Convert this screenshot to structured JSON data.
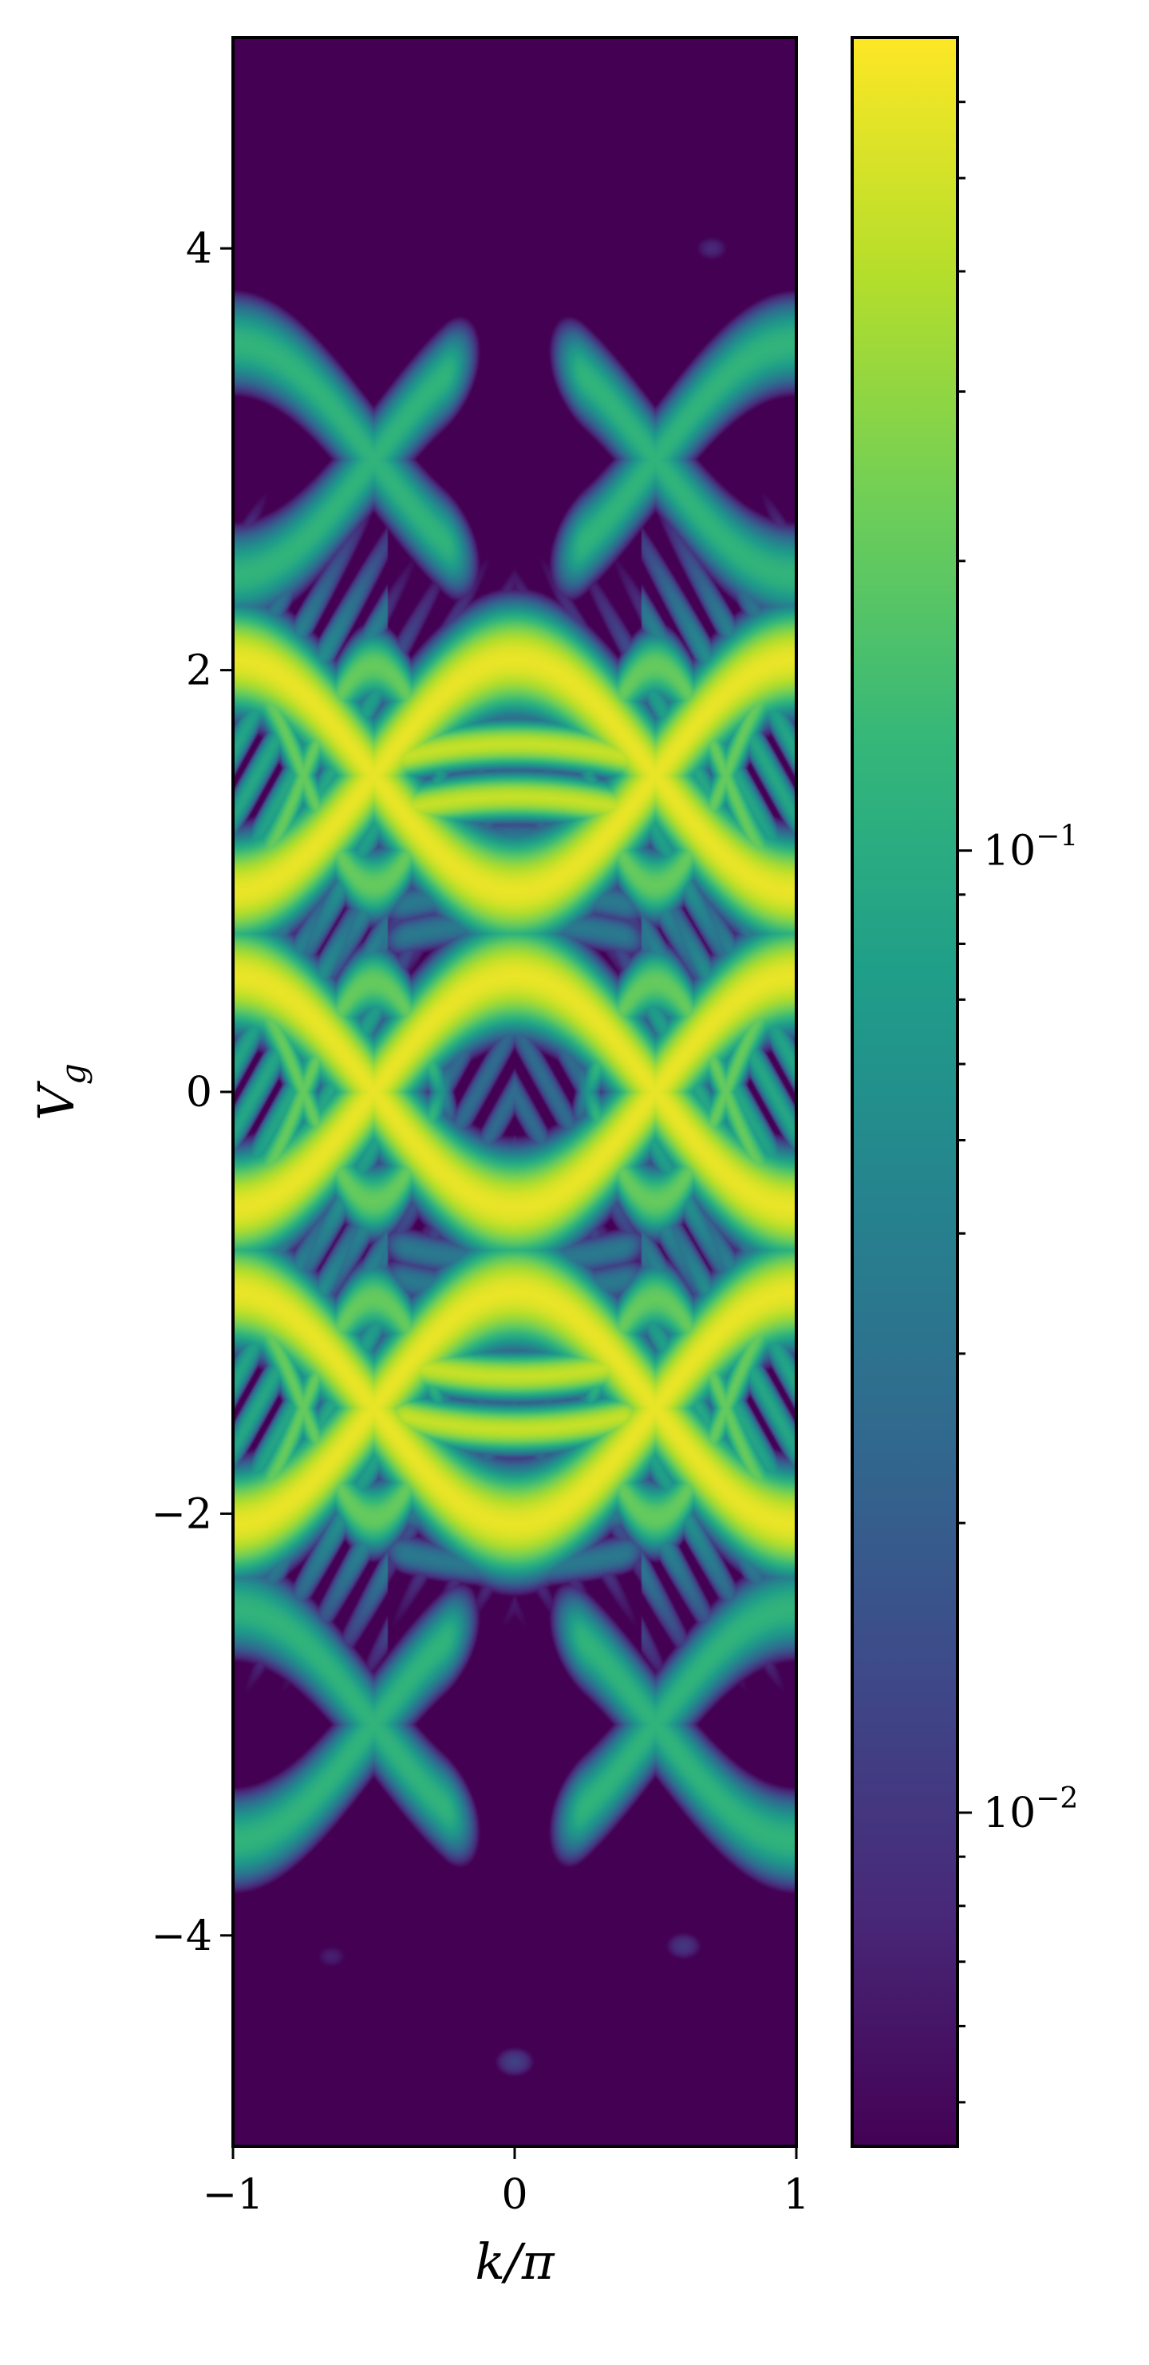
{
  "chart_data": {
    "type": "heatmap",
    "title": "",
    "xlabel": "k/π",
    "ylabel": "V",
    "ylabel_subscript": "g",
    "xlim": [
      -1,
      1
    ],
    "ylim": [
      -5,
      5
    ],
    "x_ticks": [
      -1,
      0,
      1
    ],
    "x_tick_labels": [
      "−1",
      "0",
      "1"
    ],
    "y_ticks": [
      4,
      2,
      0,
      -2,
      -4
    ],
    "y_tick_labels": [
      "4",
      "2",
      "0",
      "−2",
      "−4"
    ],
    "colormap": "viridis",
    "colorbar": {
      "scale": "log",
      "range": [
        0.0045,
        0.7
      ],
      "major_ticks": [
        0.01,
        0.1
      ],
      "major_tick_base": "10",
      "major_tick_exponents": [
        "−2",
        "−1"
      ],
      "minor_ticks": [
        0.005,
        0.006,
        0.007,
        0.008,
        0.009,
        0.02,
        0.03,
        0.04,
        0.05,
        0.06,
        0.07,
        0.08,
        0.09,
        0.2,
        0.3,
        0.4,
        0.5,
        0.6
      ]
    },
    "background_value": 0.0045,
    "features": {
      "bright_bands_centers_Vg": [
        1.5,
        0,
        -1.5
      ],
      "bright_band_peak": 0.6,
      "outer_bands_centers_Vg": [
        3.0,
        -3.0
      ],
      "outer_band_peak": 0.12,
      "band_amplitude": 0.55,
      "band_width": 0.11,
      "central_arcs_Vg": [
        1.8,
        1.65,
        1.4,
        1.2,
        0.95,
        0.8,
        -0.8,
        -0.95,
        -1.35,
        -1.6,
        -1.85,
        -2.05,
        -2.25
      ],
      "small_spots": [
        {
          "k": 0.0,
          "Vg": -4.6,
          "value": 0.012
        },
        {
          "k": 0.6,
          "Vg": -4.05,
          "value": 0.01
        },
        {
          "k": 0.7,
          "Vg": 4.0,
          "value": 0.008
        },
        {
          "k": -0.65,
          "Vg": -4.1,
          "value": 0.007
        }
      ]
    }
  },
  "colors": {
    "viridis_stops": [
      "#440154",
      "#482878",
      "#3e4989",
      "#31688e",
      "#26828e",
      "#1f9e89",
      "#35b779",
      "#6ece58",
      "#b5de2b",
      "#fde725"
    ]
  }
}
